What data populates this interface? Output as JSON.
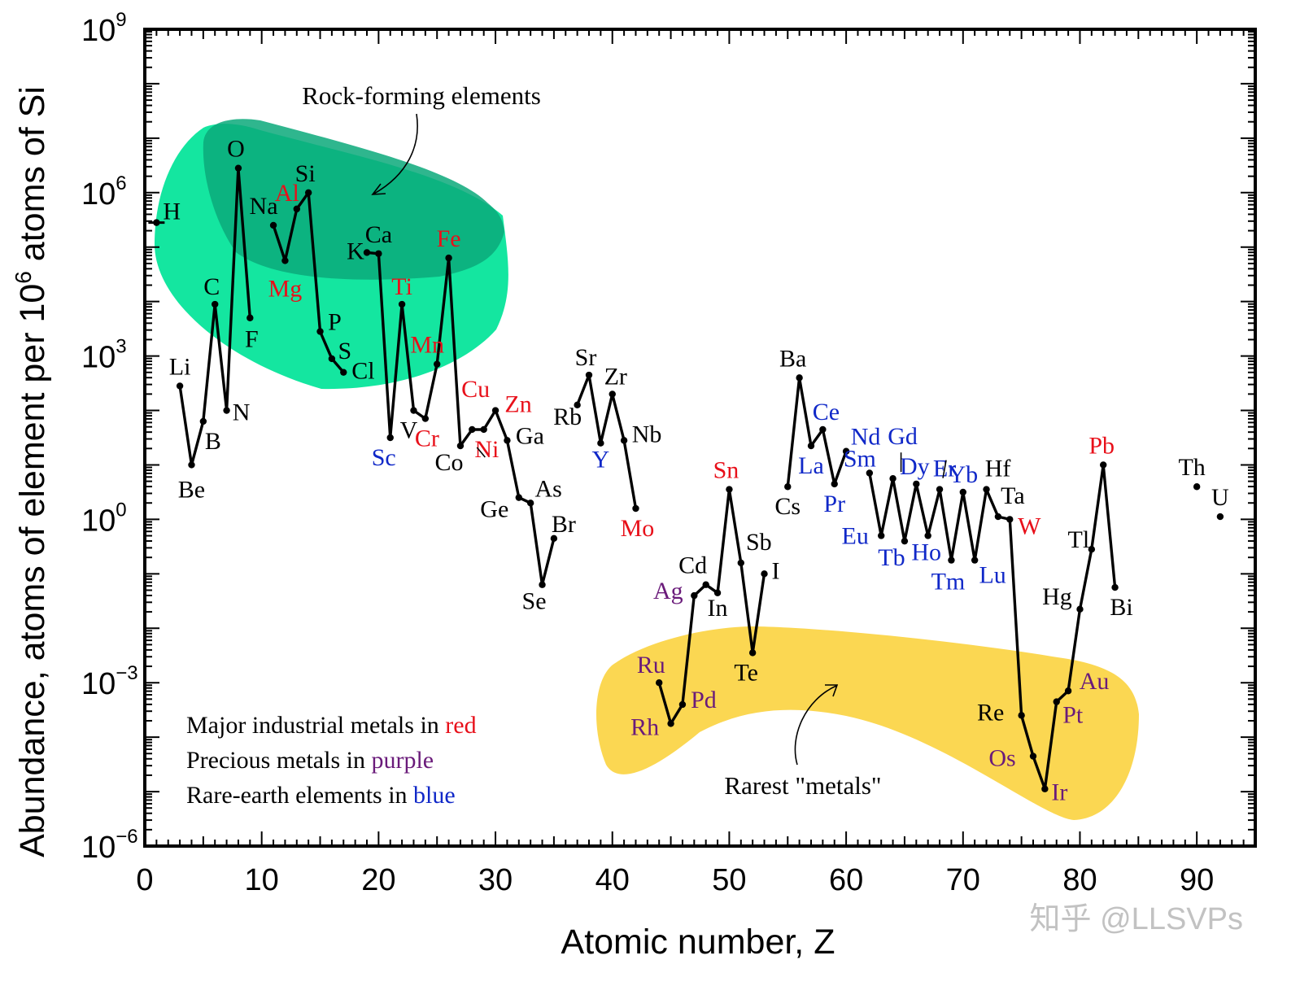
{
  "chart_data": {
    "type": "line",
    "title": "",
    "xlabel": "Atomic number, Z",
    "ylabel_main": "Abundance, atoms of element per 10",
    "ylabel_sup": "6",
    "ylabel_tail": " atoms of Si",
    "xlim": [
      0,
      95
    ],
    "ylim_log10": [
      -6,
      9
    ],
    "x_ticks": [
      0,
      10,
      20,
      30,
      40,
      50,
      60,
      70,
      80,
      90
    ],
    "y_ticks": [
      {
        "base": "10",
        "exp": "9",
        "value": 9
      },
      {
        "base": "10",
        "exp": "6",
        "value": 6
      },
      {
        "base": "10",
        "exp": "3",
        "value": 3
      },
      {
        "base": "10",
        "exp": "0",
        "value": 0
      },
      {
        "base": "10",
        "exp": "−3",
        "value": -3
      },
      {
        "base": "10",
        "exp": "−6",
        "value": -6
      }
    ],
    "colors": {
      "default": "#000000",
      "red": "#e8101a",
      "purple": "#6a1b7a",
      "blue": "#1028c8",
      "rock_light": "#14e6a0",
      "rock_dark": "#0aa97a",
      "rare_fill": "#fbd752"
    },
    "elements": [
      {
        "sym": "H",
        "z": 1,
        "log": 5.45,
        "c": "default",
        "dx": 8,
        "dy": -4,
        "a": "start"
      },
      {
        "sym": "Li",
        "z": 3,
        "log": 2.45,
        "c": "default",
        "dx": 0,
        "dy": -14,
        "a": "middle"
      },
      {
        "sym": "Be",
        "z": 4,
        "log": 1.0,
        "c": "default",
        "dx": 0,
        "dy": 40,
        "a": "middle"
      },
      {
        "sym": "B",
        "z": 5,
        "log": 1.8,
        "c": "default",
        "dx": 12,
        "dy": 34,
        "a": "middle"
      },
      {
        "sym": "C",
        "z": 6,
        "log": 3.95,
        "c": "default",
        "dx": -4,
        "dy": -12,
        "a": "middle"
      },
      {
        "sym": "N",
        "z": 7,
        "log": 2.0,
        "c": "default",
        "dx": 18,
        "dy": 12,
        "a": "middle"
      },
      {
        "sym": "O",
        "z": 8,
        "log": 6.45,
        "c": "default",
        "dx": -3,
        "dy": -14,
        "a": "middle"
      },
      {
        "sym": "F",
        "z": 9,
        "log": 3.7,
        "c": "default",
        "dx": 2,
        "dy": 36,
        "a": "middle"
      },
      {
        "sym": "Na",
        "z": 11,
        "log": 5.4,
        "c": "default",
        "dx": -12,
        "dy": -14,
        "a": "middle"
      },
      {
        "sym": "Mg",
        "z": 12,
        "log": 4.75,
        "c": "red",
        "dx": 0,
        "dy": 44,
        "a": "middle"
      },
      {
        "sym": "Al",
        "z": 13,
        "log": 5.7,
        "c": "red",
        "dx": -12,
        "dy": -10,
        "a": "middle"
      },
      {
        "sym": "Si",
        "z": 14,
        "log": 6.0,
        "c": "default",
        "dx": -4,
        "dy": -14,
        "a": "middle"
      },
      {
        "sym": "P",
        "z": 15,
        "log": 3.45,
        "c": "default",
        "dx": 18,
        "dy": -2,
        "a": "middle"
      },
      {
        "sym": "S",
        "z": 16,
        "log": 2.95,
        "c": "default",
        "dx": 16,
        "dy": 0,
        "a": "middle"
      },
      {
        "sym": "Cl",
        "z": 17,
        "log": 2.7,
        "c": "default",
        "dx": 10,
        "dy": 8,
        "a": "start"
      },
      {
        "sym": "K",
        "z": 19,
        "log": 4.9,
        "c": "default",
        "dx": -14,
        "dy": 8,
        "a": "middle"
      },
      {
        "sym": "Ca",
        "z": 20,
        "log": 4.88,
        "c": "default",
        "dx": 0,
        "dy": -14,
        "a": "middle"
      },
      {
        "sym": "Sc",
        "z": 21,
        "log": 1.5,
        "c": "blue",
        "dx": -8,
        "dy": 34,
        "a": "middle"
      },
      {
        "sym": "Ti",
        "z": 22,
        "log": 3.95,
        "c": "red",
        "dx": 0,
        "dy": -12,
        "a": "middle"
      },
      {
        "sym": "V",
        "z": 23,
        "log": 2.0,
        "c": "default",
        "dx": -6,
        "dy": 34,
        "a": "middle"
      },
      {
        "sym": "Cr",
        "z": 24,
        "log": 1.85,
        "c": "red",
        "dx": 2,
        "dy": 34,
        "a": "middle"
      },
      {
        "sym": "Mn",
        "z": 25,
        "log": 2.85,
        "c": "red",
        "dx": -12,
        "dy": -14,
        "a": "middle"
      },
      {
        "sym": "Fe",
        "z": 26,
        "log": 4.8,
        "c": "red",
        "dx": 0,
        "dy": -14,
        "a": "middle"
      },
      {
        "sym": "Co",
        "z": 27,
        "log": 1.35,
        "c": "default",
        "dx": -14,
        "dy": 30,
        "a": "middle"
      },
      {
        "sym": "Ni",
        "z": 28,
        "log": 1.65,
        "c": "red",
        "dx": 18,
        "dy": 34,
        "a": "middle"
      },
      {
        "sym": "Cu",
        "z": 29,
        "log": 1.65,
        "c": "red",
        "dx": -10,
        "dy": -40,
        "a": "middle"
      },
      {
        "sym": "Zn",
        "z": 30,
        "log": 2.0,
        "c": "red",
        "dx": 28,
        "dy": 2,
        "a": "middle"
      },
      {
        "sym": "Ga",
        "z": 31,
        "log": 1.45,
        "c": "default",
        "dx": 28,
        "dy": 4,
        "a": "middle"
      },
      {
        "sym": "Ge",
        "z": 32,
        "log": 0.4,
        "c": "default",
        "dx": -30,
        "dy": 24,
        "a": "middle"
      },
      {
        "sym": "As",
        "z": 33,
        "log": 0.3,
        "c": "default",
        "dx": 22,
        "dy": -8,
        "a": "middle"
      },
      {
        "sym": "Se",
        "z": 34,
        "log": -1.2,
        "c": "default",
        "dx": -10,
        "dy": 30,
        "a": "middle"
      },
      {
        "sym": "Br",
        "z": 35,
        "log": -0.35,
        "c": "default",
        "dx": 12,
        "dy": -8,
        "a": "middle"
      },
      {
        "sym": "Rb",
        "z": 37,
        "log": 2.1,
        "c": "default",
        "dx": -12,
        "dy": 24,
        "a": "middle"
      },
      {
        "sym": "Sr",
        "z": 38,
        "log": 2.65,
        "c": "default",
        "dx": -4,
        "dy": -12,
        "a": "middle"
      },
      {
        "sym": "Y",
        "z": 39,
        "log": 1.4,
        "c": "blue",
        "dx": 0,
        "dy": 30,
        "a": "middle"
      },
      {
        "sym": "Zr",
        "z": 40,
        "log": 2.3,
        "c": "default",
        "dx": 4,
        "dy": -12,
        "a": "middle"
      },
      {
        "sym": "Nb",
        "z": 41,
        "log": 1.45,
        "c": "default",
        "dx": 28,
        "dy": 2,
        "a": "middle"
      },
      {
        "sym": "Mo",
        "z": 42,
        "log": 0.2,
        "c": "red",
        "dx": 2,
        "dy": 34,
        "a": "middle"
      },
      {
        "sym": "Ru",
        "z": 44,
        "log": -3.0,
        "c": "purple",
        "dx": -10,
        "dy": -12,
        "a": "middle"
      },
      {
        "sym": "Rh",
        "z": 45,
        "log": -3.75,
        "c": "purple",
        "dx": -32,
        "dy": 14,
        "a": "middle"
      },
      {
        "sym": "Pd",
        "z": 46,
        "log": -3.4,
        "c": "purple",
        "dx": 26,
        "dy": 4,
        "a": "middle"
      },
      {
        "sym": "Ag",
        "z": 47,
        "log": -1.4,
        "c": "purple",
        "dx": -32,
        "dy": 4,
        "a": "middle"
      },
      {
        "sym": "Cd",
        "z": 48,
        "log": -1.2,
        "c": "default",
        "dx": -16,
        "dy": -14,
        "a": "middle"
      },
      {
        "sym": "In",
        "z": 49,
        "log": -1.35,
        "c": "default",
        "dx": 0,
        "dy": 28,
        "a": "middle"
      },
      {
        "sym": "Sn",
        "z": 50,
        "log": 0.55,
        "c": "red",
        "dx": -4,
        "dy": -14,
        "a": "middle"
      },
      {
        "sym": "Sb",
        "z": 51,
        "log": -0.8,
        "c": "default",
        "dx": 22,
        "dy": -16,
        "a": "middle"
      },
      {
        "sym": "Te",
        "z": 52,
        "log": -2.45,
        "c": "default",
        "dx": -8,
        "dy": 34,
        "a": "middle"
      },
      {
        "sym": "I",
        "z": 53,
        "log": -1.0,
        "c": "default",
        "dx": 14,
        "dy": 6,
        "a": "middle"
      },
      {
        "sym": "Cs",
        "z": 55,
        "log": 0.6,
        "c": "default",
        "dx": 0,
        "dy": 34,
        "a": "middle"
      },
      {
        "sym": "Ba",
        "z": 56,
        "log": 2.6,
        "c": "default",
        "dx": -8,
        "dy": -14,
        "a": "middle"
      },
      {
        "sym": "La",
        "z": 57,
        "log": 1.35,
        "c": "blue",
        "dx": 0,
        "dy": 34,
        "a": "middle"
      },
      {
        "sym": "Ce",
        "z": 58,
        "log": 1.65,
        "c": "blue",
        "dx": 4,
        "dy": -12,
        "a": "middle"
      },
      {
        "sym": "Pr",
        "z": 59,
        "log": 0.65,
        "c": "blue",
        "dx": 0,
        "dy": 34,
        "a": "middle"
      },
      {
        "sym": "Nd",
        "z": 60,
        "log": 1.25,
        "c": "blue",
        "dx": 24,
        "dy": -8,
        "a": "middle"
      },
      {
        "sym": "Sm",
        "z": 62,
        "log": 0.85,
        "c": "blue",
        "dx": -12,
        "dy": -8,
        "a": "middle"
      },
      {
        "sym": "Eu",
        "z": 63,
        "log": -0.3,
        "c": "blue",
        "dx": -32,
        "dy": 10,
        "a": "middle"
      },
      {
        "sym": "Gd",
        "z": 64,
        "log": 0.75,
        "c": "blue",
        "dx": 12,
        "dy": -42,
        "a": "middle"
      },
      {
        "sym": "Tb",
        "z": 65,
        "log": -0.4,
        "c": "blue",
        "dx": -16,
        "dy": 30,
        "a": "middle"
      },
      {
        "sym": "Dy",
        "z": 66,
        "log": 0.65,
        "c": "blue",
        "dx": -2,
        "dy": -12,
        "a": "middle"
      },
      {
        "sym": "Ho",
        "z": 67,
        "log": -0.3,
        "c": "blue",
        "dx": -2,
        "dy": 30,
        "a": "middle"
      },
      {
        "sym": "Er",
        "z": 68,
        "log": 0.55,
        "c": "blue",
        "dx": 6,
        "dy": -16,
        "a": "middle"
      },
      {
        "sym": "Tm",
        "z": 69,
        "log": -0.75,
        "c": "blue",
        "dx": -4,
        "dy": 36,
        "a": "middle"
      },
      {
        "sym": "Yb",
        "z": 70,
        "log": 0.5,
        "c": "blue",
        "dx": 0,
        "dy": -12,
        "a": "middle"
      },
      {
        "sym": "Lu",
        "z": 71,
        "log": -0.75,
        "c": "blue",
        "dx": 22,
        "dy": 28,
        "a": "middle"
      },
      {
        "sym": "Hf",
        "z": 72,
        "log": 0.55,
        "c": "default",
        "dx": 14,
        "dy": -16,
        "a": "middle"
      },
      {
        "sym": "Ta",
        "z": 73,
        "log": 0.05,
        "c": "default",
        "dx": 18,
        "dy": -16,
        "a": "middle"
      },
      {
        "sym": "W",
        "z": 74,
        "log": 0.0,
        "c": "red",
        "dx": 24,
        "dy": 18,
        "a": "middle"
      },
      {
        "sym": "Re",
        "z": 75,
        "log": -3.6,
        "c": "default",
        "dx": -38,
        "dy": 6,
        "a": "middle"
      },
      {
        "sym": "Os",
        "z": 76,
        "log": -4.35,
        "c": "purple",
        "dx": -38,
        "dy": 12,
        "a": "middle"
      },
      {
        "sym": "Ir",
        "z": 77,
        "log": -4.95,
        "c": "purple",
        "dx": 18,
        "dy": 14,
        "a": "middle"
      },
      {
        "sym": "Pt",
        "z": 78,
        "log": -3.35,
        "c": "purple",
        "dx": 20,
        "dy": 26,
        "a": "middle"
      },
      {
        "sym": "Au",
        "z": 79,
        "log": -3.15,
        "c": "purple",
        "dx": 32,
        "dy": -2,
        "a": "middle"
      },
      {
        "sym": "Hg",
        "z": 80,
        "log": -1.65,
        "c": "default",
        "dx": -28,
        "dy": -6,
        "a": "middle"
      },
      {
        "sym": "Tl",
        "z": 81,
        "log": -0.55,
        "c": "default",
        "dx": -16,
        "dy": -2,
        "a": "middle"
      },
      {
        "sym": "Pb",
        "z": 82,
        "log": 1.0,
        "c": "red",
        "dx": -2,
        "dy": -14,
        "a": "middle"
      },
      {
        "sym": "Bi",
        "z": 83,
        "log": -1.25,
        "c": "default",
        "dx": 8,
        "dy": 34,
        "a": "middle"
      },
      {
        "sym": "Th",
        "z": 90,
        "log": 0.6,
        "c": "default",
        "dx": -6,
        "dy": -14,
        "a": "middle"
      },
      {
        "sym": "U",
        "z": 92,
        "log": 0.05,
        "c": "default",
        "dx": 0,
        "dy": -14,
        "a": "middle"
      }
    ],
    "segments": [
      [
        1
      ],
      [
        3,
        4,
        5,
        6,
        7,
        8,
        9
      ],
      [
        11,
        12,
        13,
        14,
        15,
        16,
        17
      ],
      [
        19,
        20,
        21,
        22,
        23,
        24,
        25,
        26,
        27,
        28,
        29,
        30,
        31,
        32,
        33,
        34,
        35
      ],
      [
        37,
        38,
        39,
        40,
        41,
        42
      ],
      [
        44,
        45,
        46,
        47,
        48,
        49,
        50,
        51,
        52,
        53
      ],
      [
        55,
        56,
        57,
        58,
        59,
        60
      ],
      [
        62,
        63,
        64,
        65,
        66,
        67,
        68,
        69,
        70,
        71,
        72,
        73,
        74,
        75,
        76,
        77,
        78,
        79,
        80,
        81,
        82,
        83
      ],
      [
        90
      ],
      [
        92
      ]
    ],
    "annotations": {
      "rock_label": "Rock-forming elements",
      "rare_label": "Rarest \"metals\""
    },
    "legend": [
      {
        "prefix": "Major industrial metals in ",
        "word": "red",
        "c": "red"
      },
      {
        "prefix": "Precious metals in ",
        "word": "purple",
        "c": "purple"
      },
      {
        "prefix": "Rare-earth elements in ",
        "word": "blue",
        "c": "blue"
      }
    ]
  },
  "watermark": "知乎 @LLSVPs"
}
